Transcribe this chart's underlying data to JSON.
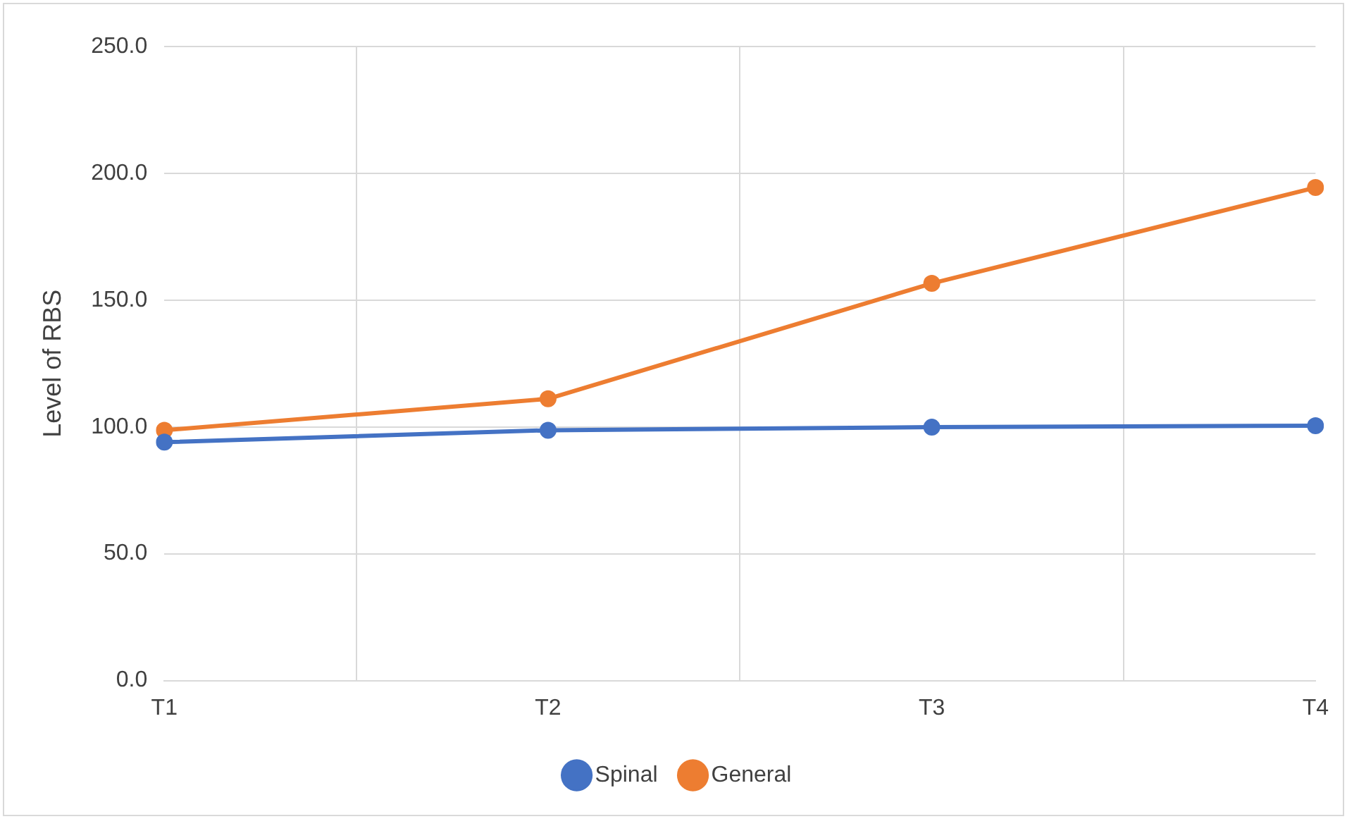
{
  "chart_data": {
    "type": "line",
    "ylabel": "Level of RBS",
    "categories": [
      "T1",
      "T2",
      "T3",
      "T4"
    ],
    "series": [
      {
        "name": "Spinal",
        "color": "#4472c4",
        "values": [
          94.0,
          98.7,
          99.9,
          100.5
        ]
      },
      {
        "name": "General",
        "color": "#ed7d31",
        "values": [
          98.7,
          111.1,
          156.6,
          194.4
        ]
      }
    ],
    "ylim": [
      0,
      250
    ],
    "yticks": [
      {
        "value": 0,
        "label": "0.0"
      },
      {
        "value": 50,
        "label": "50.0"
      },
      {
        "value": 100,
        "label": "100.0"
      },
      {
        "value": 150,
        "label": "150.0"
      },
      {
        "value": 200,
        "label": "200.0"
      },
      {
        "value": 250,
        "label": "250.0"
      }
    ],
    "grid": true,
    "legend": "bottom",
    "marker": "circle",
    "line_style": "solid"
  }
}
